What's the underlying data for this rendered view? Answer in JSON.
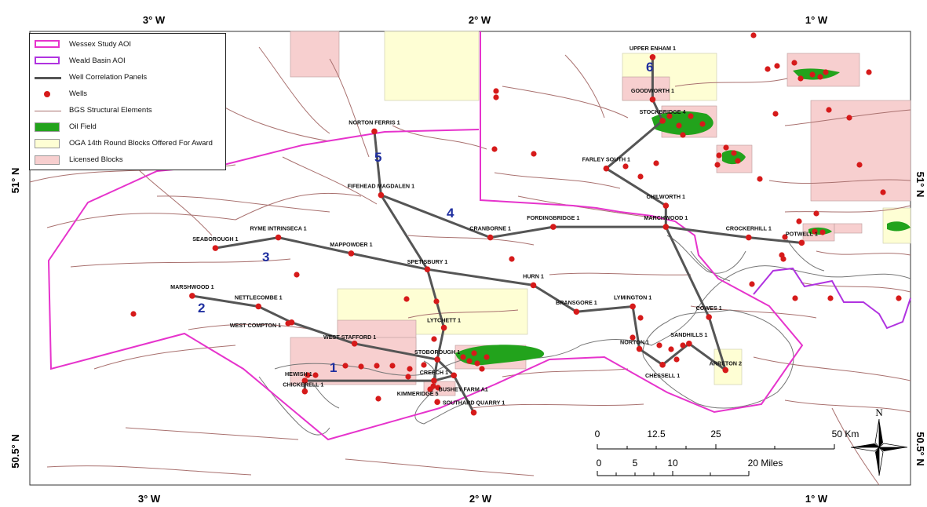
{
  "colors": {
    "wessex_aoi": "#e633cc",
    "weald_aoi": "#b033e0",
    "panel_line": "#555555",
    "well": "#d61a1a",
    "fault": "#a9716f",
    "oil": "#22a31c",
    "oga": "#fefed4",
    "licensed": "#f7cfcf",
    "coast": "#777777"
  },
  "axis": {
    "top_labels": [
      "3° W",
      "2° W",
      "1° W"
    ],
    "bottom_labels": [
      "3° W",
      "2° W",
      "1° W"
    ],
    "left_labels": [
      "51° N",
      "50.5° N"
    ],
    "right_labels": [
      "51° N",
      "50.5° N"
    ]
  },
  "legend": {
    "items": [
      {
        "label": "Wessex Study AOI",
        "symbol": "box-outline",
        "color": "#e633cc",
        "icon": "wessex-aoi-swatch-icon"
      },
      {
        "label": "Weald Basin AOI",
        "symbol": "box-outline",
        "color": "#b033e0",
        "icon": "weald-aoi-swatch-icon"
      },
      {
        "label": "Well Correlation Panels",
        "symbol": "line-thick",
        "color": "#555555",
        "icon": "panel-line-icon"
      },
      {
        "label": "Wells",
        "symbol": "dot",
        "color": "#d61a1a",
        "icon": "well-dot-icon"
      },
      {
        "label": "BGS Structural Elements",
        "symbol": "line-thin",
        "color": "#a9716f",
        "icon": "fault-line-icon"
      },
      {
        "label": "Oil Field",
        "symbol": "fill",
        "color": "#22a31c",
        "icon": "oil-field-swatch-icon"
      },
      {
        "label": "OGA 14th Round Blocks Offered For Award",
        "symbol": "fill",
        "color": "#fefed4",
        "icon": "oga-block-swatch-icon"
      },
      {
        "label": "Licensed Blocks",
        "symbol": "fill",
        "color": "#f7cfcf",
        "icon": "licensed-block-swatch-icon"
      }
    ]
  },
  "wells": [
    {
      "name": "UPPER ENHAM 1",
      "lon": -1.48,
      "lat": 51.24
    },
    {
      "name": "GOODWORTH 1",
      "lon": -1.48,
      "lat": 51.16
    },
    {
      "name": "STOCKBRIDGE 4",
      "lon": -1.45,
      "lat": 51.12
    },
    {
      "name": "NORTON FERRIS 1",
      "lon": -2.32,
      "lat": 51.1
    },
    {
      "name": "FARLEY SOUTH 1",
      "lon": -1.62,
      "lat": 51.03
    },
    {
      "name": "FIFEHEAD MAGDALEN 1",
      "lon": -2.3,
      "lat": 50.98
    },
    {
      "name": "CHILWORTH 1",
      "lon": -1.44,
      "lat": 50.96
    },
    {
      "name": "CRANBORNE 1",
      "lon": -1.97,
      "lat": 50.9
    },
    {
      "name": "FORDINGBRIDGE 1",
      "lon": -1.78,
      "lat": 50.92
    },
    {
      "name": "MARCHWOOD 1",
      "lon": -1.44,
      "lat": 50.92
    },
    {
      "name": "CROCKERHILL 1",
      "lon": -1.19,
      "lat": 50.9
    },
    {
      "name": "POTWELL 1",
      "lon": -1.03,
      "lat": 50.89
    },
    {
      "name": "RYME INTRINSECA 1",
      "lon": -2.61,
      "lat": 50.9
    },
    {
      "name": "SEABOROUGH 1",
      "lon": -2.8,
      "lat": 50.88
    },
    {
      "name": "MAPPOWDER 1",
      "lon": -2.39,
      "lat": 50.87
    },
    {
      "name": "SPETISBURY 1",
      "lon": -2.16,
      "lat": 50.84
    },
    {
      "name": "HURN 1",
      "lon": -1.84,
      "lat": 50.81
    },
    {
      "name": "MARSHWOOD 1",
      "lon": -2.87,
      "lat": 50.79
    },
    {
      "name": "NETTLECOMBE 1",
      "lon": -2.67,
      "lat": 50.77
    },
    {
      "name": "BRANSGORE 1",
      "lon": -1.71,
      "lat": 50.76
    },
    {
      "name": "LYMINGTON 1",
      "lon": -1.54,
      "lat": 50.77
    },
    {
      "name": "COWES 1",
      "lon": -1.31,
      "lat": 50.75
    },
    {
      "name": "WEST COMPTON 1",
      "lon": -2.57,
      "lat": 50.74
    },
    {
      "name": "LYTCHETT 1",
      "lon": -2.11,
      "lat": 50.73
    },
    {
      "name": "SANDHILLS 1",
      "lon": -1.37,
      "lat": 50.7
    },
    {
      "name": "WEST STAFFORD 1",
      "lon": -2.38,
      "lat": 50.7
    },
    {
      "name": "NORTON 1",
      "lon": -1.52,
      "lat": 50.69
    },
    {
      "name": "STOBOROUGH 1",
      "lon": -2.13,
      "lat": 50.67
    },
    {
      "name": "CHESSELL 1",
      "lon": -1.45,
      "lat": 50.66
    },
    {
      "name": "ARRETON 2",
      "lon": -1.26,
      "lat": 50.65
    },
    {
      "name": "HEWISH 1",
      "lon": -2.53,
      "lat": 50.63
    },
    {
      "name": "BUSHEY FARM A1",
      "lon": -2.08,
      "lat": 50.64
    },
    {
      "name": "CREECH 1",
      "lon": -2.14,
      "lat": 50.63
    },
    {
      "name": "CHICKERELL 1",
      "lon": -2.53,
      "lat": 50.61
    },
    {
      "name": "KIMMERIDGE 5",
      "lon": -2.13,
      "lat": 50.59
    },
    {
      "name": "SOUTHARD QUARRY 1",
      "lon": -2.02,
      "lat": 50.57
    }
  ],
  "panels": [
    {
      "number": "1",
      "wells": [
        "CHICKERELL 1",
        "HEWISH 1",
        "CREECH 1",
        "BUSHEY FARM A1",
        "SOUTHARD QUARRY 1"
      ]
    },
    {
      "number": "2",
      "wells": [
        "MARSHWOOD 1",
        "NETTLECOMBE 1",
        "WEST COMPTON 1",
        "WEST STAFFORD 1",
        "STOBOROUGH 1",
        "CREECH 1"
      ]
    },
    {
      "number": "3",
      "wells": [
        "SEABOROUGH 1",
        "RYME INTRINSECA 1",
        "MAPPOWDER 1",
        "SPETISBURY 1",
        "HURN 1",
        "BRANSGORE 1",
        "LYMINGTON 1",
        "NORTON 1",
        "CHESSELL 1",
        "SANDHILLS 1",
        "ARRETON 2"
      ]
    },
    {
      "number": "4",
      "wells": [
        "FIFEHEAD MAGDALEN 1",
        "CRANBORNE 1",
        "FORDINGBRIDGE 1",
        "MARCHWOOD 1",
        "CROCKERHILL 1",
        "POTWELL 1"
      ]
    },
    {
      "number": "5",
      "wells": [
        "NORTON FERRIS 1",
        "FIFEHEAD MAGDALEN 1",
        "SPETISBURY 1",
        "LYTCHETT 1",
        "STOBOROUGH 1",
        "BUSHEY FARM A1"
      ]
    },
    {
      "number": "6",
      "wells": [
        "UPPER ENHAM 1",
        "GOODWORTH 1",
        "STOCKBRIDGE 4",
        "FARLEY SOUTH 1",
        "CHILWORTH 1",
        "MARCHWOOD 1",
        "COWES 1",
        "ARRETON 2"
      ]
    }
  ],
  "scalebar": {
    "km_ticks": [
      "0",
      "12.5",
      "25",
      "50 Km"
    ],
    "mile_ticks": [
      "0",
      "5",
      "10",
      "20 Miles"
    ]
  },
  "north_arrow": {
    "label": "N"
  }
}
